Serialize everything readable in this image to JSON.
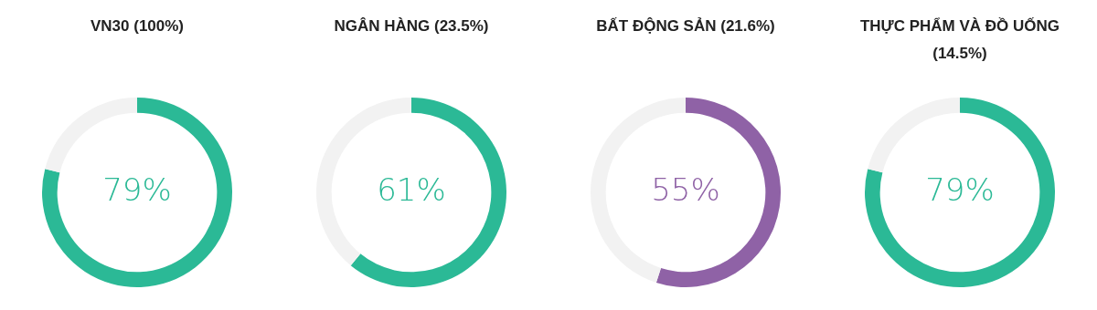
{
  "chart_data": [
    {
      "type": "donut",
      "title": "VN30 (100%)",
      "categories": [
        null,
        null
      ],
      "values": [
        79,
        21
      ],
      "colors": [
        "#2bb996",
        "#f2f2f2"
      ],
      "value_labels": [
        "79%",
        null
      ]
    },
    {
      "type": "donut",
      "title": "NGÂN HÀNG (23.5%)",
      "categories": [
        null,
        null
      ],
      "values": [
        61,
        39
      ],
      "colors": [
        "#2bb996",
        "#f2f2f2"
      ],
      "value_labels": [
        "61%",
        null
      ]
    },
    {
      "type": "donut",
      "title": "BẤT ĐỘNG SẢN (21.6%)",
      "categories": [
        null,
        null
      ],
      "values": [
        55,
        45
      ],
      "colors": [
        "#8f62a6",
        "#f2f2f2"
      ],
      "value_labels": [
        "55%",
        null
      ]
    },
    {
      "type": "donut",
      "title": "THỰC PHẨM VÀ ĐỒ UỐNG (14.5%)",
      "categories": [
        null,
        null
      ],
      "values": [
        79,
        21
      ],
      "colors": [
        "#2bb996",
        "#f2f2f2"
      ],
      "value_labels": [
        "79%",
        null
      ]
    }
  ]
}
